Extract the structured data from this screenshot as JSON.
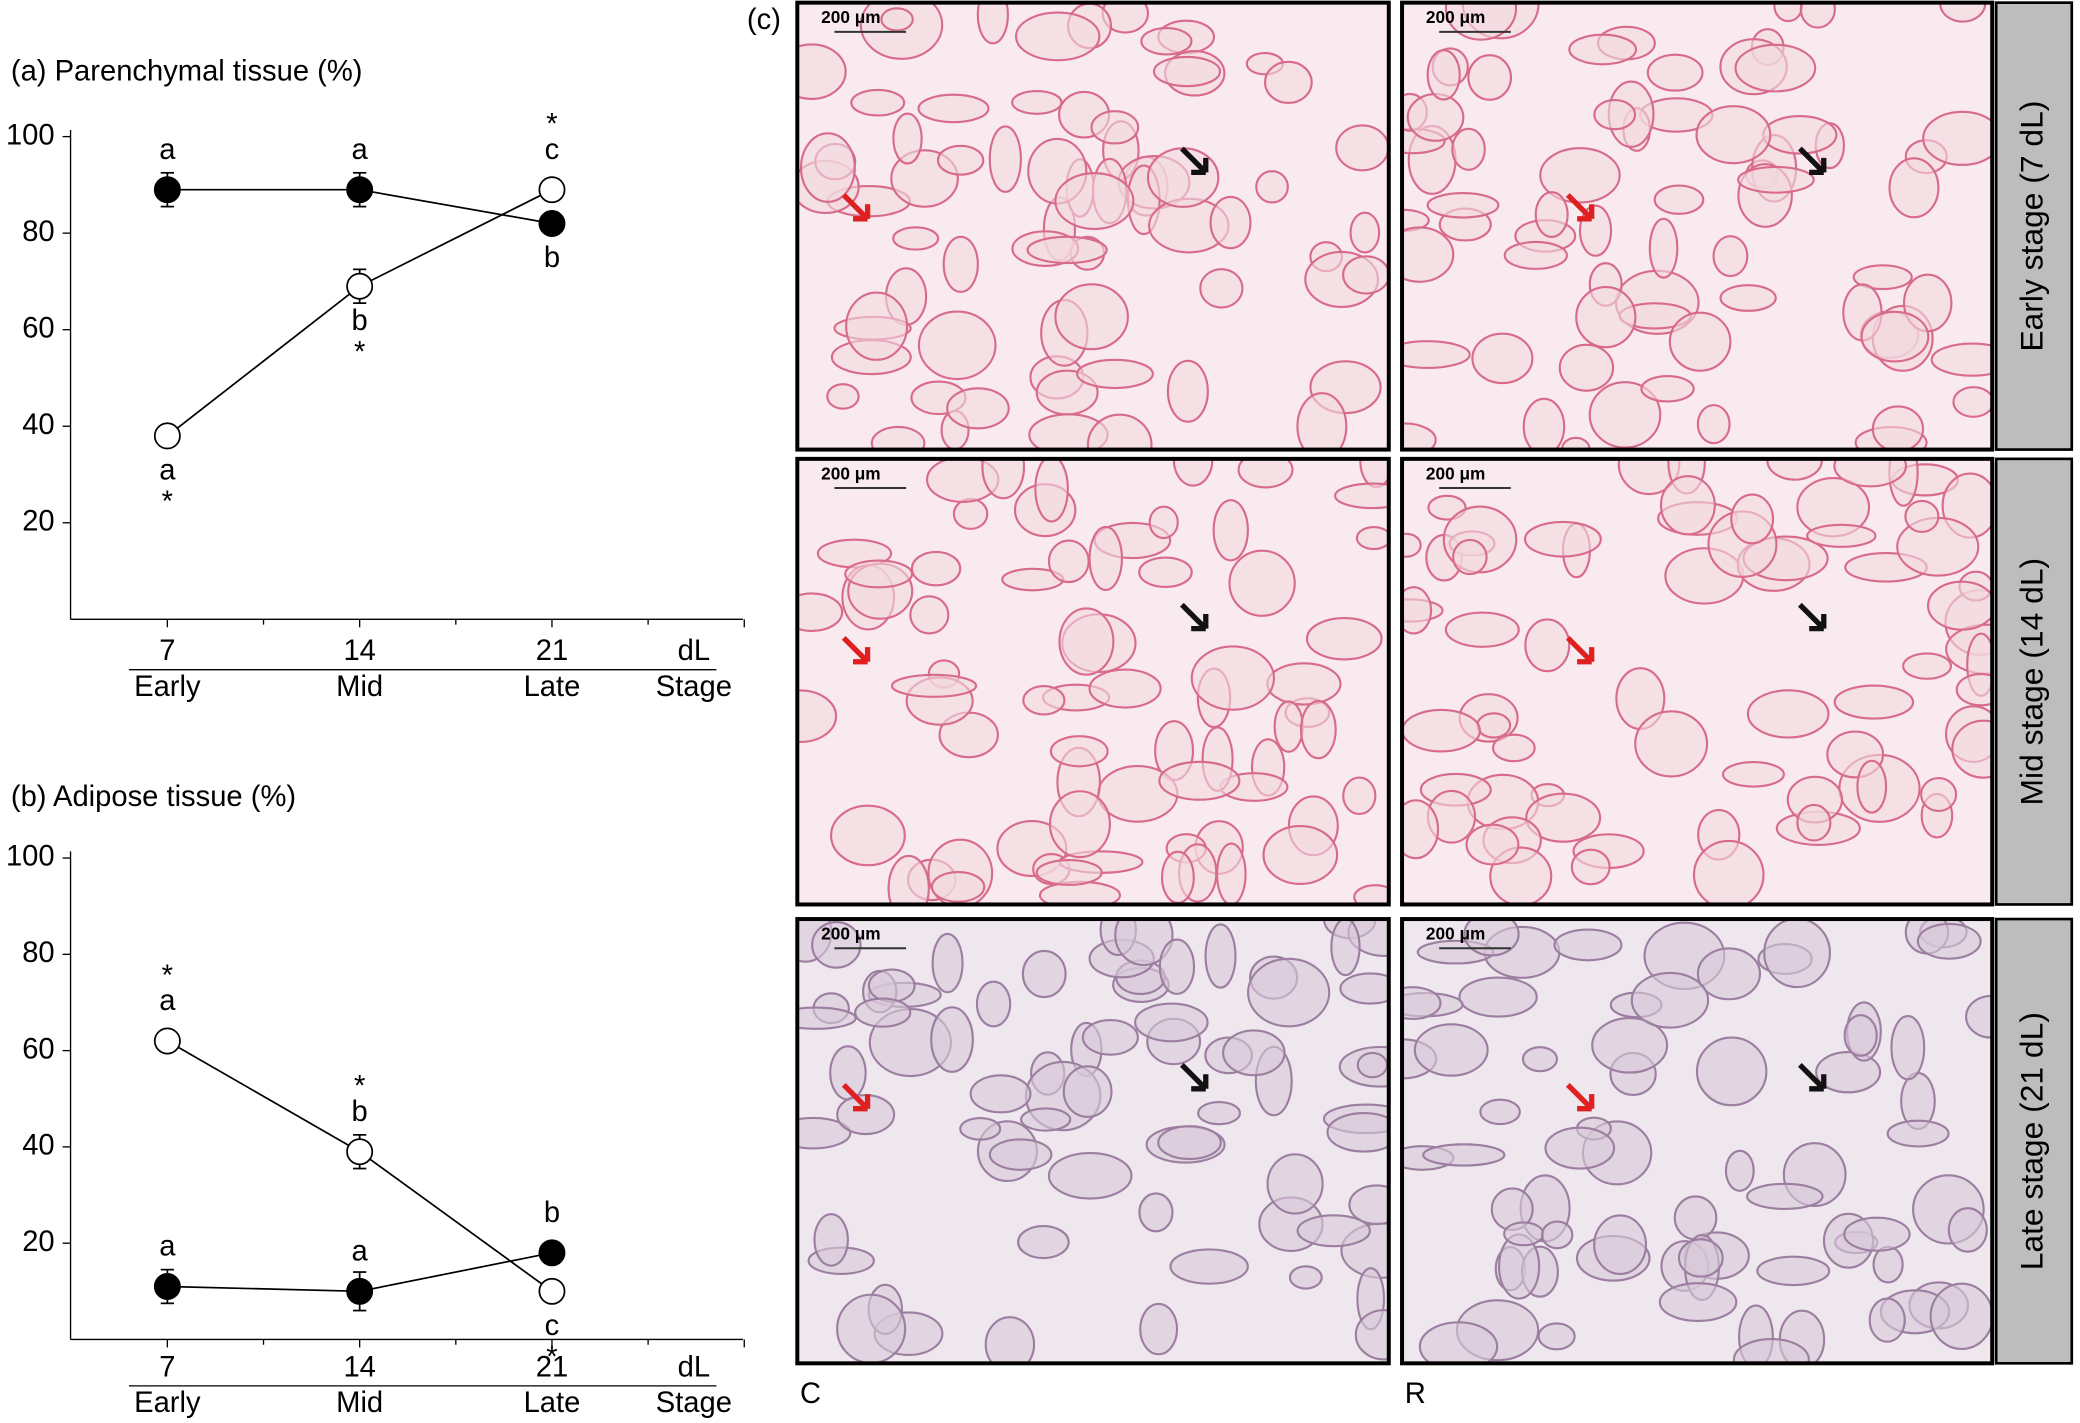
{
  "chart_data": [
    {
      "type": "line",
      "title": "(a) Parenchymal tissue (%)",
      "categories": [
        "7",
        "14",
        "21"
      ],
      "category_groups": [
        "Early",
        "Mid",
        "Late"
      ],
      "xlabel": "dL",
      "xlabel_group": "Stage",
      "ylim": [
        0,
        100
      ],
      "yticks": [
        20,
        40,
        60,
        80,
        100
      ],
      "series": [
        {
          "color": "#000000",
          "marker_fill": "#000000",
          "values": [
            89,
            89,
            82
          ],
          "errors": [
            3.5,
            3.5,
            2
          ],
          "letters": [
            "a",
            "a",
            "b"
          ],
          "stars": [
            null,
            null,
            null
          ],
          "label_position": [
            "above",
            "above",
            "below"
          ]
        },
        {
          "color": "#000000",
          "marker_fill": "#ffffff",
          "values": [
            38,
            69,
            89
          ],
          "errors": [
            2,
            3.5,
            2
          ],
          "letters": [
            "a",
            "b",
            "c"
          ],
          "stars": [
            "*",
            "*",
            "*"
          ],
          "label_position": [
            "below",
            "below",
            "above"
          ]
        }
      ]
    },
    {
      "type": "line",
      "title": "(b) Adipose tissue (%)",
      "categories": [
        "7",
        "14",
        "21"
      ],
      "category_groups": [
        "Early",
        "Mid",
        "Late"
      ],
      "xlabel": "dL",
      "xlabel_group": "Stage",
      "ylim": [
        0,
        100
      ],
      "yticks": [
        20,
        40,
        60,
        80,
        100
      ],
      "series": [
        {
          "color": "#000000",
          "marker_fill": "#000000",
          "values": [
            11,
            10,
            18
          ],
          "errors": [
            3.5,
            4,
            2
          ],
          "letters": [
            "a",
            "a",
            "b"
          ],
          "stars": [
            null,
            null,
            null
          ],
          "label_position": [
            "above",
            "above",
            "above"
          ]
        },
        {
          "color": "#000000",
          "marker_fill": "#ffffff",
          "values": [
            62,
            39,
            10
          ],
          "errors": [
            2,
            3.5,
            2
          ],
          "letters": [
            "a",
            "b",
            "c"
          ],
          "stars": [
            "*",
            "*",
            "*"
          ],
          "label_position": [
            "above",
            "above",
            "below"
          ]
        }
      ]
    }
  ],
  "panel_c": {
    "label": "(c)",
    "scale_bar": "200 μm",
    "rows": [
      "Early stage (7 dL)",
      "Mid stage (14 dL)",
      "Late stage (21 dL)"
    ],
    "columns": [
      "C",
      "R"
    ]
  }
}
